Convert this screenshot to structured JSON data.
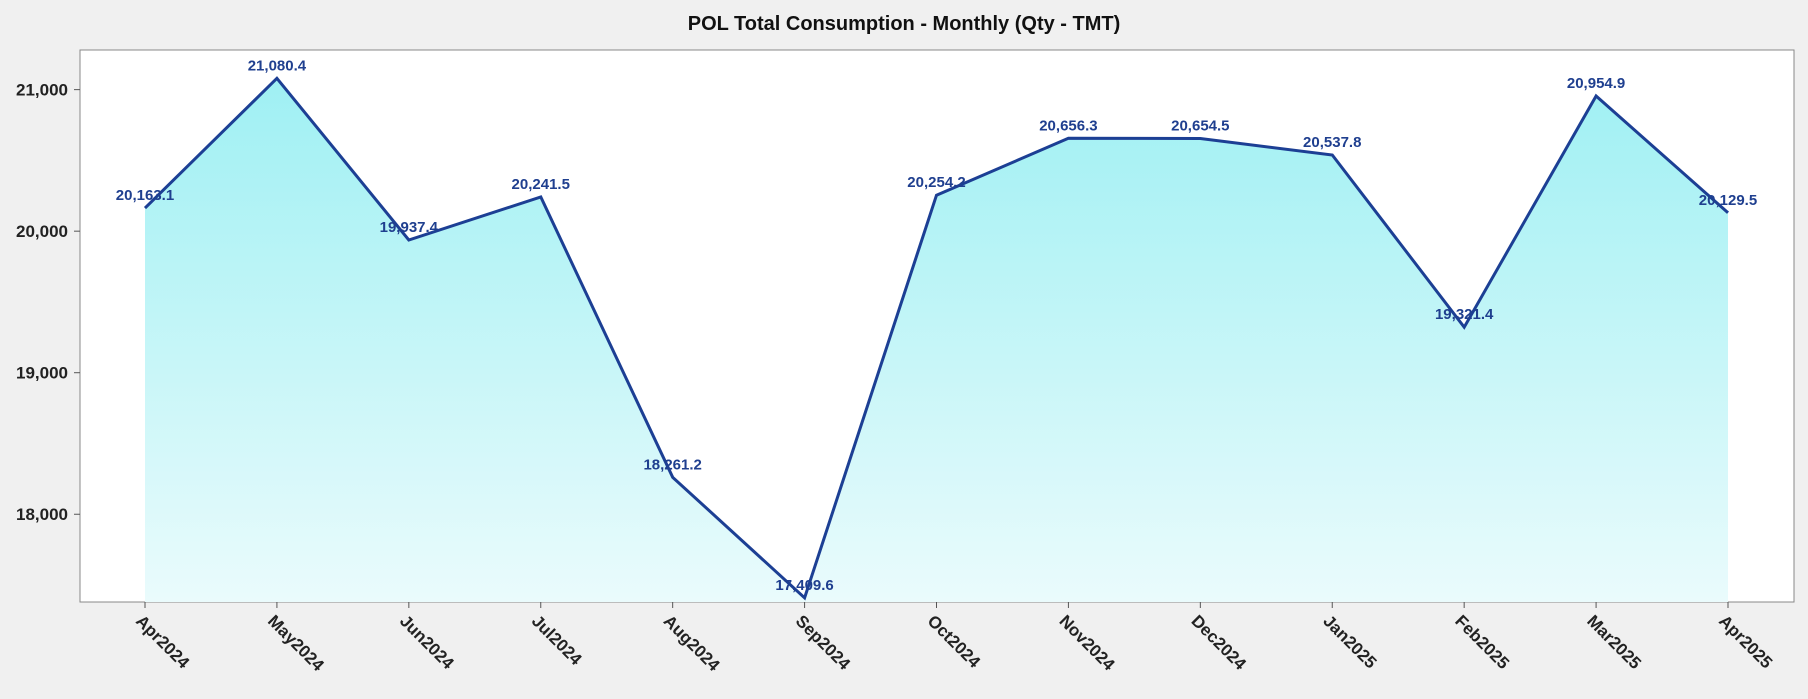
{
  "chart_data": {
    "type": "area",
    "title": "POL Total Consumption - Monthly (Qty - TMT)",
    "xlabel": "",
    "ylabel": "",
    "categories": [
      "Apr2024",
      "May2024",
      "Jun2024",
      "Jul2024",
      "Aug2024",
      "Sep2024",
      "Oct2024",
      "Nov2024",
      "Dec2024",
      "Jan2025",
      "Feb2025",
      "Mar2025",
      "Apr2025"
    ],
    "values": [
      20163.1,
      21080.4,
      19937.4,
      20241.5,
      18261.2,
      17409.6,
      20254.2,
      20656.3,
      20654.5,
      20537.8,
      19321.4,
      20954.9,
      20129.5
    ],
    "data_labels": [
      "20,163.1",
      "21,080.4",
      "19,937.4",
      "20,241.5",
      "18,261.2",
      "17,409.6",
      "20,254.2",
      "20,656.3",
      "20,654.5",
      "20,537.8",
      "19,321.4",
      "20,954.9",
      "20,129.5"
    ],
    "ylim": [
      17380,
      21280
    ],
    "yticks": [
      18000,
      19000,
      20000,
      21000
    ],
    "ytick_labels": [
      "18,000",
      "19,000",
      "20,000",
      "21,000"
    ],
    "grid": false,
    "legend": "none",
    "colors": {
      "line": "#1c3f94",
      "fill_top": "#9ff0f3",
      "fill_bottom": "#eafbfc",
      "plot_bg": "#ffffff",
      "page_bg": "#f0f0f0",
      "label": "#1f3f8f"
    }
  }
}
